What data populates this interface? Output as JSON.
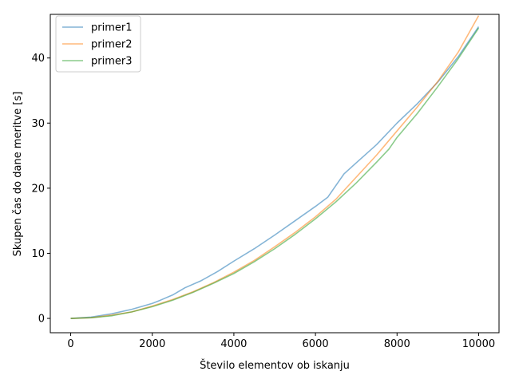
{
  "chart_data": {
    "type": "line",
    "title": "",
    "xlabel": "Število elementov ob iskanju",
    "ylabel": "Skupen čas do dane meritve [s]",
    "xlim": [
      -500,
      10500
    ],
    "ylim": [
      -2.2,
      46.7
    ],
    "xticks": [
      0,
      2000,
      4000,
      6000,
      8000,
      10000
    ],
    "xtick_labels": [
      "0",
      "2000",
      "4000",
      "6000",
      "8000",
      "10000"
    ],
    "yticks": [
      0,
      10,
      20,
      30,
      40
    ],
    "ytick_labels": [
      "0",
      "10",
      "20",
      "30",
      "40"
    ],
    "grid": false,
    "legend_position": "upper-left",
    "series": [
      {
        "name": "primer1",
        "color": "#1f77b4",
        "x": [
          0,
          500,
          1000,
          1500,
          2000,
          2200,
          2500,
          2800,
          3200,
          3600,
          4000,
          4500,
          5000,
          5500,
          6000,
          6300,
          6500,
          6700,
          7000,
          7500,
          8000,
          8500,
          9000,
          9500,
          10000
        ],
        "y": [
          0,
          0.2,
          0.7,
          1.4,
          2.3,
          2.8,
          3.6,
          4.7,
          5.8,
          7.2,
          8.8,
          10.7,
          12.8,
          15.0,
          17.2,
          18.6,
          20.4,
          22.2,
          23.9,
          26.7,
          30.0,
          33.0,
          36.3,
          40.2,
          44.8
        ]
      },
      {
        "name": "primer2",
        "color": "#ff7f0e",
        "x": [
          0,
          500,
          1000,
          1500,
          2000,
          2500,
          3000,
          3500,
          4000,
          4500,
          5000,
          5500,
          6000,
          6500,
          7000,
          7500,
          8000,
          8500,
          9000,
          9500,
          10000
        ],
        "y": [
          0,
          0.1,
          0.5,
          1.0,
          1.9,
          2.9,
          4.1,
          5.5,
          7.1,
          8.9,
          11.0,
          13.2,
          15.6,
          18.3,
          21.7,
          25.1,
          28.8,
          32.5,
          36.4,
          40.9,
          46.5
        ]
      },
      {
        "name": "primer3",
        "color": "#2ca02c",
        "x": [
          0,
          500,
          1000,
          1500,
          2000,
          2500,
          3000,
          3500,
          4000,
          4500,
          5000,
          5500,
          6000,
          6500,
          7000,
          7500,
          7800,
          8000,
          8500,
          9000,
          9500,
          10000
        ],
        "y": [
          0,
          0.1,
          0.4,
          1.0,
          1.8,
          2.8,
          4.0,
          5.4,
          6.9,
          8.7,
          10.7,
          12.9,
          15.3,
          17.9,
          20.8,
          24.0,
          26.0,
          27.8,
          31.5,
          35.6,
          39.9,
          44.6
        ]
      }
    ]
  }
}
